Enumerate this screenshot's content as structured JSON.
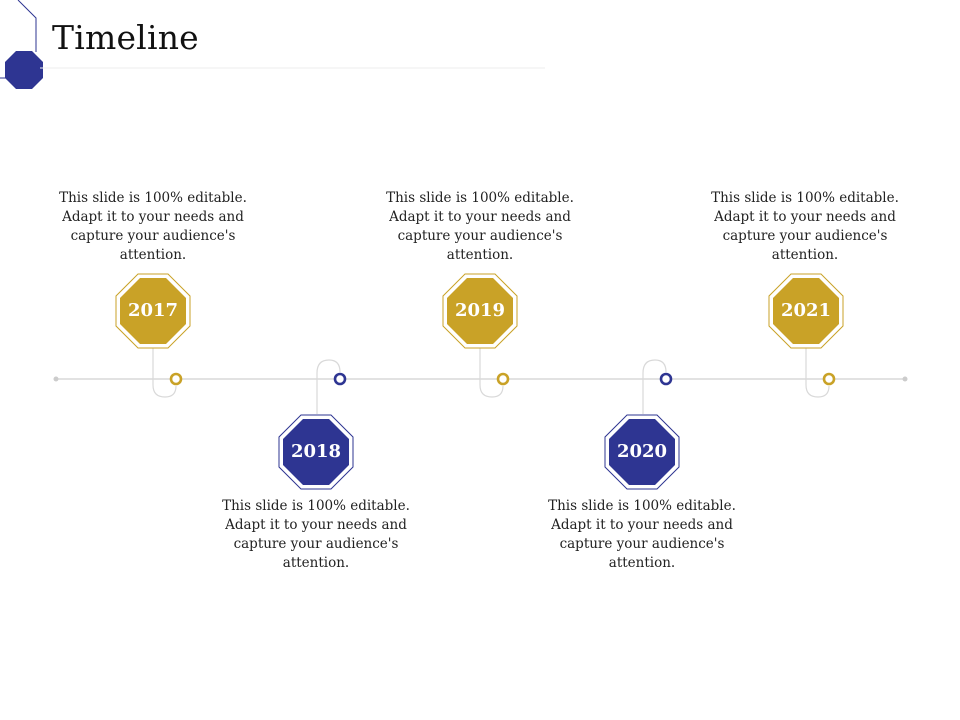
{
  "title": "Timeline",
  "colors": {
    "gold": "#C9A227",
    "navy": "#2E3592",
    "line": "#D9D9D9"
  },
  "milestones": [
    {
      "year": "2017",
      "text": "This slide is 100% editable. Adapt it to your needs and capture your audience's attention.",
      "color": "gold"
    },
    {
      "year": "2018",
      "text": "This slide is 100% editable. Adapt it to your needs and capture your audience's attention.",
      "color": "navy"
    },
    {
      "year": "2019",
      "text": "This slide is 100% editable. Adapt it to your needs and capture your audience's attention.",
      "color": "gold"
    },
    {
      "year": "2020",
      "text": "This slide is 100% editable. Adapt it to your needs and capture your audience's attention.",
      "color": "navy"
    },
    {
      "year": "2021",
      "text": "This slide is 100% editable. Adapt it to your needs and capture your audience's attention.",
      "color": "gold"
    }
  ]
}
